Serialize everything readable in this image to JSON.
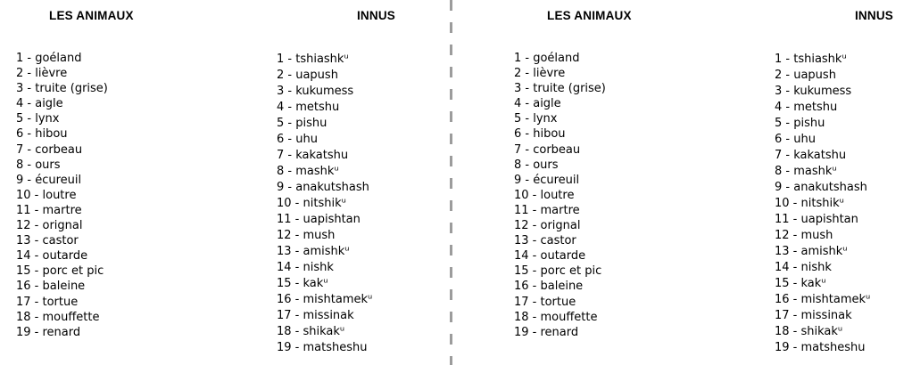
{
  "page": {
    "background_color": "#ffffff",
    "divider_color": "#9c9c9c",
    "text_color": "#000000"
  },
  "columns": {
    "french": {
      "header": "LES ANIMAUX",
      "items": [
        "1 - goéland",
        "2 - lièvre",
        "3 - truite (grise)",
        "4 - aigle",
        "5 - lynx",
        "6 - hibou",
        "7 - corbeau",
        "8 - ours",
        "9 - écureuil",
        "10 - loutre",
        "11 - martre",
        "12 - orignal",
        "13 - castor",
        "14 - outarde",
        "15 - porc et pic",
        "16 - baleine",
        "17 - tortue",
        "18 - mouffette",
        "19 - renard"
      ]
    },
    "innu": {
      "header": "INNUS",
      "items": [
        "1 - tshiashkᵘ",
        "2 - uapush",
        "3 - kukumess",
        "4 - metshu",
        "5 - pishu",
        "6 - uhu",
        "7 - kakatshu",
        "8 - mashkᵘ",
        "9 - anakutshash",
        "10 - nitshikᵘ",
        "11 - uapishtan",
        "12 - mush",
        "13 - amishkᵘ",
        "14 - nishk",
        "15 - kakᵘ",
        "16 - mishtamekᵘ",
        "17 - missinak",
        "18 - shikakᵘ",
        "19 - matsheshu"
      ]
    }
  }
}
